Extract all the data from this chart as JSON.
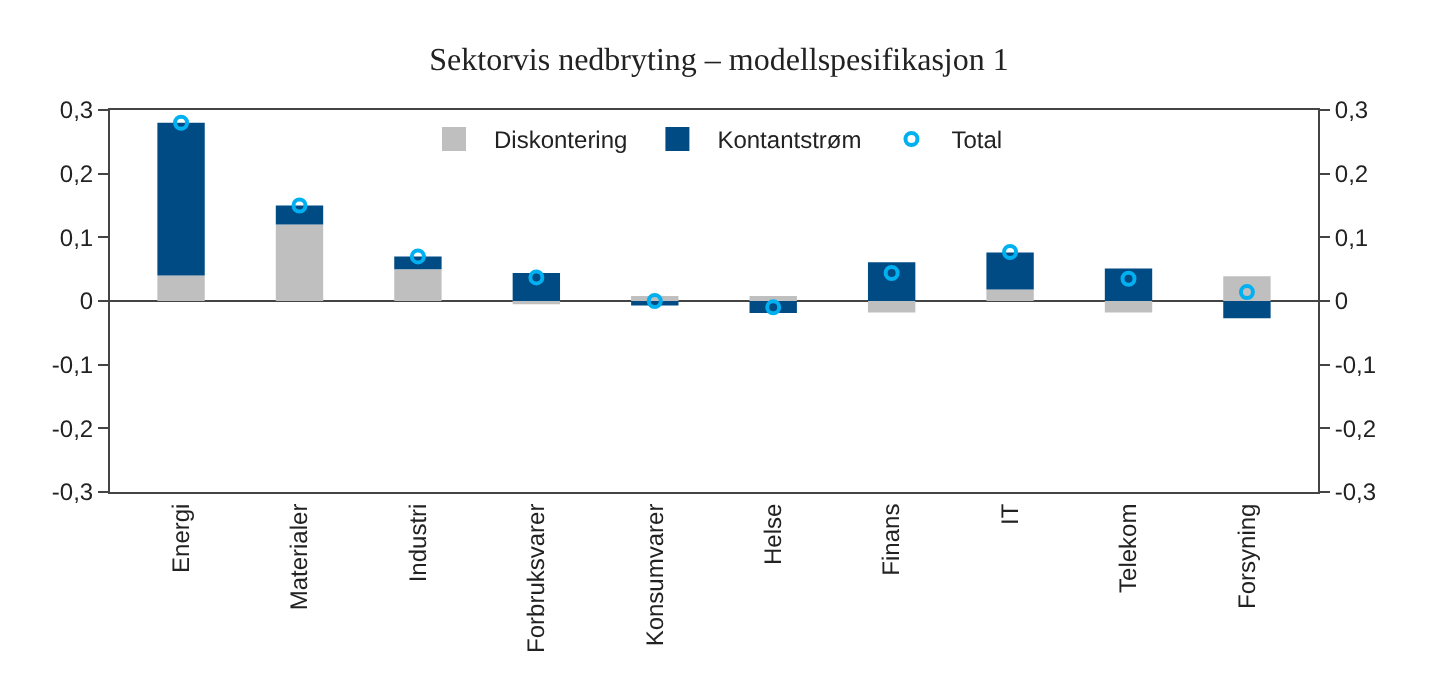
{
  "chart_data": {
    "type": "bar",
    "title": "Sektorvis nedbryting – modellspesifikasjon 1",
    "categories": [
      "Energi",
      "Materialer",
      "Industri",
      "Forbruksvarer",
      "Konsumvarer",
      "Helse",
      "Finans",
      "IT",
      "Telekom",
      "Forsyning"
    ],
    "stacked": true,
    "series": [
      {
        "name": "Diskontering",
        "color": "#bfbfbf",
        "values": [
          0.04,
          0.12,
          0.05,
          -0.005,
          0.008,
          0.008,
          -0.018,
          0.018,
          -0.018,
          0.039
        ]
      },
      {
        "name": "Kontantstrøm",
        "color": "#004b84",
        "values": [
          0.24,
          0.03,
          0.02,
          0.044,
          -0.007,
          -0.019,
          0.061,
          0.058,
          0.051,
          -0.027
        ]
      },
      {
        "name": "Total",
        "type": "scatter",
        "color": "#00b0f0",
        "marker": "circle",
        "values": [
          0.28,
          0.15,
          0.07,
          0.037,
          0.0,
          -0.01,
          0.044,
          0.077,
          0.035,
          0.014
        ]
      }
    ],
    "ylim": [
      -0.3,
      0.3
    ],
    "yticks": [
      {
        "value": -0.3,
        "label": "-0,3"
      },
      {
        "value": -0.2,
        "label": "-0,2"
      },
      {
        "value": -0.1,
        "label": "-0,1"
      },
      0,
      {
        "value": 0.1,
        "label": "0,1"
      },
      {
        "value": 0.2,
        "label": "0,2"
      },
      {
        "value": 0.3,
        "label": "0,3"
      }
    ],
    "y2lim": [
      -0.3,
      0.3
    ],
    "y2ticks": [
      {
        "value": -0.3,
        "label": "-0,3"
      },
      {
        "value": -0.2,
        "label": "-0,2"
      },
      {
        "value": -0.1,
        "label": "-0,1"
      },
      0,
      {
        "value": 0.1,
        "label": "0,1"
      },
      {
        "value": 0.2,
        "label": "0,2"
      },
      {
        "value": 0.3,
        "label": "0,3"
      }
    ],
    "legend": "top"
  }
}
